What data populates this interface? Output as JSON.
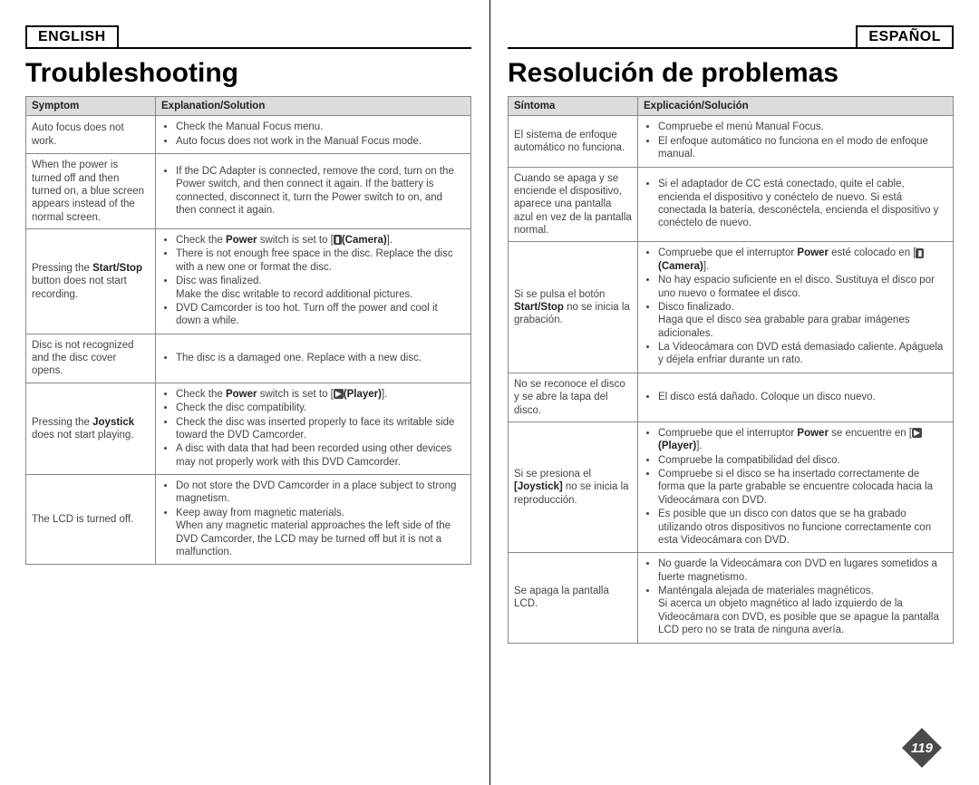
{
  "page_number": "119",
  "badge_fill": "#4a4a4a",
  "left": {
    "lang": "ENGLISH",
    "title": "Troubleshooting",
    "col_symptom": "Symptom",
    "col_solution": "Explanation/Solution",
    "rows": [
      {
        "symptom": "Auto focus does not work.",
        "items": [
          "Check the Manual Focus menu.",
          "Auto focus does not work in the Manual Focus mode."
        ]
      },
      {
        "symptom": "When the power is turned off and then turned on, a blue screen appears instead of the normal screen.",
        "items": [
          "If the DC Adapter is connected, remove the cord, turn on the Power switch, and then connect it again. If the battery is connected, disconnect it, turn the Power switch to on, and then connect it again."
        ]
      },
      {
        "symptom_html": "Pressing the <span class='b'>Start/Stop</span> button does not start recording.",
        "items_html": [
          "Check the <span class='b'>Power</span> switch is set to [<span class='icon-cam'>▮</span><span class='b'>(Camera)</span>].",
          "There is not enough free space in the disc. Replace the disc with a new one or format the disc.",
          "Disc was finalized.<br>Make the disc writable to record additional pictures.",
          "DVD Camcorder is too hot. Turn off the power and cool it down a while."
        ]
      },
      {
        "symptom": "Disc is not recognized and the disc cover opens.",
        "items": [
          "The disc is a damaged one. Replace with a new disc."
        ]
      },
      {
        "symptom_html": "Pressing the <span class='b'>Joystick</span> does not start playing.",
        "items_html": [
          "Check the <span class='b'>Power</span> switch is set to [<span class='icon-play'>▶</span><span class='b'>(Player)</span>].",
          "Check the disc compatibility.",
          "Check the disc was inserted properly to face its writable side toward the DVD Camcorder.",
          "A disc with data that had been recorded using other devices may not properly work with this DVD Camcorder."
        ]
      },
      {
        "symptom": "The LCD is turned off.",
        "items": [
          "Do not store the DVD Camcorder in a place subject to strong magnetism.",
          "Keep away from magnetic materials.<br>When any magnetic material approaches the left side of the DVD Camcorder, the LCD may be turned off but it is not a malfunction."
        ]
      }
    ]
  },
  "right": {
    "lang": "ESPAÑOL",
    "title": "Resolución de problemas",
    "col_symptom": "Síntoma",
    "col_solution": "Explicación/Solución",
    "rows": [
      {
        "symptom": "El sistema de enfoque automático no funciona.",
        "items": [
          "Compruebe el menú Manual Focus.",
          "El enfoque automático no funciona en el modo de enfoque manual."
        ]
      },
      {
        "symptom": "Cuando se apaga y se enciende el dispositivo, aparece una pantalla azul en vez de la pantalla normal.",
        "items": [
          "Si el adaptador de CC está conectado, quite el cable, encienda el dispositivo y conéctelo de nuevo. Si está conectada la batería, desconéctela, encienda el dispositivo y conéctelo de nuevo."
        ]
      },
      {
        "symptom_html": "Si se pulsa el botón <span class='b'>Start/Stop</span> no se inicia la grabación.",
        "items_html": [
          "Compruebe que el interruptor <span class='b'>Power</span> esté colocado en [<span class='icon-cam'>▮</span><span class='b'>(Camera)</span>].",
          "No hay espacio suficiente en el disco. Sustituya el disco por uno nuevo o formatee el disco.",
          "Disco finalizado.<br>Haga que el disco sea grabable para grabar imágenes adicionales.",
          "La Videocámara con DVD está demasiado caliente. Apáguela y déjela enfriar durante un rato."
        ]
      },
      {
        "symptom": "No se reconoce el disco y se abre la tapa del disco.",
        "items": [
          "El disco está dañado. Coloque un disco nuevo."
        ]
      },
      {
        "symptom_html": "Si se presiona el <span class='b'>[Joystick]</span> no se inicia la reproducción.",
        "items_html": [
          "Compruebe que el interruptor <span class='b'>Power</span> se encuentre en [<span class='icon-play'>▶</span><span class='b'>(Player)</span>].",
          "Compruebe la compatibilidad del disco.",
          "Compruebe si el disco se ha insertado correctamente de forma que la parte grabable se encuentre colocada hacia la Videocámara con DVD.",
          "Es posible que un disco con datos que se ha grabado utilizando otros dispositivos no funcione correctamente con esta Videocámara con DVD."
        ]
      },
      {
        "symptom": "Se apaga la pantalla LCD.",
        "items": [
          "No guarde la Videocámara con DVD en lugares sometidos a fuerte magnetismo.",
          "Manténgala alejada de materiales magnéticos.<br>Si acerca un objeto magnético al lado izquierdo de la Videocámara con DVD, es posible que se apague la pantalla LCD pero no se trata de ninguna avería."
        ]
      }
    ]
  }
}
